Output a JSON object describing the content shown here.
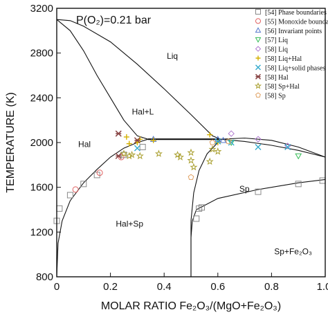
{
  "chart_data": {
    "type": "scatter",
    "annotation": "P(O₂)=0.21 bar",
    "xlabel": "MOLAR RATIO Fe₂O₃/(MgO+Fe₂O₃)",
    "ylabel": "TEMPERATURE (K)",
    "xlim": [
      0,
      1
    ],
    "ylim": [
      800,
      3200
    ],
    "x_ticks": [
      "0",
      "0.2",
      "0.4",
      "0.6",
      "0.8",
      "1.0"
    ],
    "y_ticks": [
      "800",
      "1200",
      "1600",
      "2000",
      "2400",
      "2800",
      "3200"
    ],
    "phase_labels": [
      {
        "text": "Liq",
        "x": 0.41,
        "y": 2750
      },
      {
        "text": "Hal+L",
        "x": 0.28,
        "y": 2250
      },
      {
        "text": "Hal",
        "x": 0.08,
        "y": 1960
      },
      {
        "text": "Sp",
        "x": 0.68,
        "y": 1560
      },
      {
        "text": "Hal+Sp",
        "x": 0.22,
        "y": 1250
      },
      {
        "text": "Sp+Fe₂O₃",
        "x": 0.81,
        "y": 1000
      }
    ],
    "curves": [
      {
        "name": "liquidus-upper",
        "points": [
          [
            0,
            3100
          ],
          [
            0.05,
            3090
          ],
          [
            0.1,
            3040
          ],
          [
            0.2,
            2900
          ],
          [
            0.3,
            2700
          ],
          [
            0.4,
            2480
          ],
          [
            0.5,
            2250
          ],
          [
            0.58,
            2060
          ],
          [
            0.61,
            2030
          ]
        ]
      },
      {
        "name": "liquidus-lower",
        "points": [
          [
            0,
            3100
          ],
          [
            0.05,
            3000
          ],
          [
            0.1,
            2820
          ],
          [
            0.15,
            2600
          ],
          [
            0.2,
            2400
          ],
          [
            0.25,
            2200
          ],
          [
            0.3,
            2060
          ],
          [
            0.34,
            2030
          ]
        ]
      },
      {
        "name": "invariant-line",
        "points": [
          [
            0.34,
            2030
          ],
          [
            0.61,
            2030
          ]
        ]
      },
      {
        "name": "hal-solvus",
        "points": [
          [
            0,
            800
          ],
          [
            0.005,
            1100
          ],
          [
            0.02,
            1300
          ],
          [
            0.05,
            1480
          ],
          [
            0.1,
            1640
          ],
          [
            0.15,
            1760
          ],
          [
            0.2,
            1870
          ],
          [
            0.25,
            1950
          ],
          [
            0.3,
            2000
          ],
          [
            0.34,
            2030
          ]
        ]
      },
      {
        "name": "sp-solidus",
        "points": [
          [
            0.61,
            2030
          ],
          [
            0.7,
            2010
          ],
          [
            0.8,
            1975
          ],
          [
            0.9,
            1930
          ],
          [
            1.0,
            1870
          ]
        ]
      },
      {
        "name": "sp-liquidus",
        "points": [
          [
            0.61,
            2030
          ],
          [
            0.7,
            2040
          ],
          [
            0.8,
            2020
          ],
          [
            0.9,
            1960
          ],
          [
            1.0,
            1870
          ]
        ]
      },
      {
        "name": "sp-solvus-fe2o3",
        "points": [
          [
            0.5,
            800
          ],
          [
            0.5,
            1150
          ],
          [
            0.505,
            1300
          ],
          [
            0.52,
            1400
          ],
          [
            0.6,
            1500
          ],
          [
            0.75,
            1580
          ],
          [
            0.9,
            1640
          ],
          [
            1.0,
            1670
          ]
        ]
      },
      {
        "name": "sp-mgo-side",
        "points": [
          [
            0.5,
            1300
          ],
          [
            0.51,
            1550
          ],
          [
            0.53,
            1750
          ],
          [
            0.56,
            1900
          ],
          [
            0.6,
            2000
          ],
          [
            0.61,
            2030
          ]
        ]
      },
      {
        "name": "sp-boundary-right",
        "points": [
          [
            0.5,
            800
          ],
          [
            0.5,
            1300
          ]
        ]
      }
    ],
    "series": [
      {
        "name": "[54] Phase boundaries",
        "marker": "square",
        "color": "#888888",
        "points": [
          [
            0,
            1300
          ],
          [
            0.01,
            1410
          ],
          [
            0.05,
            1530
          ],
          [
            0.1,
            1630
          ],
          [
            0.15,
            1710
          ],
          [
            0.25,
            1890
          ],
          [
            0.32,
            1960
          ],
          [
            0.52,
            1320
          ],
          [
            0.53,
            1410
          ],
          [
            0.54,
            1420
          ],
          [
            0.75,
            1560
          ],
          [
            0.9,
            1630
          ],
          [
            0.99,
            1660
          ]
        ]
      },
      {
        "name": "[55] Monoxide boundary",
        "marker": "circle",
        "color": "#e06060",
        "points": [
          [
            0.07,
            1580
          ],
          [
            0.16,
            1730
          ],
          [
            0.24,
            1870
          ]
        ]
      },
      {
        "name": "[56] Invariant points",
        "marker": "triangle",
        "color": "#5577cc",
        "points": [
          [
            0.36,
            2030
          ],
          [
            0.6,
            2030
          ],
          [
            0.62,
            2020
          ]
        ]
      },
      {
        "name": "[57] Liq",
        "marker": "triangle-down",
        "color": "#33bb55",
        "points": [
          [
            0.65,
            2000
          ],
          [
            0.9,
            1880
          ]
        ]
      },
      {
        "name": "[58] Liq",
        "marker": "diamond",
        "color": "#b07ad0",
        "points": [
          [
            0.65,
            2080
          ],
          [
            0.75,
            2030
          ],
          [
            0.86,
            1970
          ]
        ]
      },
      {
        "name": "[58] Liq+Hal",
        "marker": "plus",
        "color": "#d4b000",
        "points": [
          [
            0.26,
            2050
          ],
          [
            0.27,
            1990
          ],
          [
            0.3,
            2000
          ],
          [
            0.31,
            2030
          ],
          [
            0.36,
            2020
          ],
          [
            0.57,
            2070
          ],
          [
            0.6,
            2000
          ]
        ]
      },
      {
        "name": "[58] Liq+solid phases",
        "marker": "x",
        "color": "#33aacc",
        "points": [
          [
            0.3,
            1950
          ],
          [
            0.6,
            2010
          ],
          [
            0.65,
            2000
          ],
          [
            0.75,
            1960
          ],
          [
            0.86,
            1960
          ]
        ]
      },
      {
        "name": "[58] Hal",
        "marker": "asterisk",
        "color": "#884444",
        "points": [
          [
            0.23,
            2080
          ],
          [
            0.23,
            1880
          ],
          [
            0.3,
            2020
          ]
        ]
      },
      {
        "name": "[58] Sp+Hal",
        "marker": "star",
        "color": "#aaa030",
        "points": [
          [
            0.25,
            1900
          ],
          [
            0.27,
            1880
          ],
          [
            0.28,
            1890
          ],
          [
            0.31,
            1880
          ],
          [
            0.38,
            1900
          ],
          [
            0.45,
            1890
          ],
          [
            0.46,
            1870
          ],
          [
            0.5,
            1910
          ],
          [
            0.5,
            1840
          ],
          [
            0.51,
            1780
          ],
          [
            0.57,
            1830
          ],
          [
            0.58,
            1940
          ],
          [
            0.6,
            1920
          ]
        ]
      },
      {
        "name": "[58] Sp",
        "marker": "pentagon",
        "color": "#e0a060",
        "points": [
          [
            0.58,
            2000
          ],
          [
            0.64,
            2010
          ],
          [
            0.5,
            1690
          ]
        ]
      }
    ],
    "legend_position": "top-right"
  }
}
